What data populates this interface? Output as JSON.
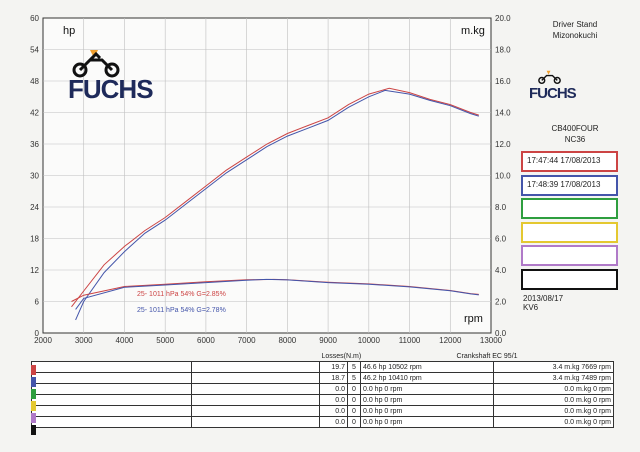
{
  "brand": {
    "logo_text": "FUCHS",
    "logo_text_small": "FUCHS"
  },
  "side_panel": {
    "line1": "Driver Stand",
    "line2": "Mizonokuchi",
    "model": "CB400FOUR",
    "model_code": "NC36",
    "date": "2013/08/17",
    "code": "KV6"
  },
  "runs": [
    {
      "label": "17:47:44  17/08/2013",
      "color": "#cc4444"
    },
    {
      "label": "17:48:39  17/08/2013",
      "color": "#4455aa"
    },
    {
      "label": "",
      "color": "#2e9e3e"
    },
    {
      "label": "",
      "color": "#e4c830"
    },
    {
      "label": "",
      "color": "#b07ac8"
    },
    {
      "label": "",
      "color": "#111111"
    }
  ],
  "chart_data": {
    "type": "line",
    "xlabel": "rpm",
    "ylabel_left": "hp",
    "ylabel_right": "m.kg",
    "xlim": [
      2000,
      13000
    ],
    "ylim_left": [
      0,
      60
    ],
    "ylim_right": [
      0,
      20
    ],
    "xticks": [
      2000,
      3000,
      4000,
      5000,
      6000,
      7000,
      8000,
      9000,
      10000,
      11000,
      12000,
      13000
    ],
    "yticks_left": [
      0,
      6,
      12,
      18,
      24,
      30,
      36,
      42,
      48,
      54,
      60
    ],
    "yticks_right": [
      "0.0",
      "2.0",
      "4.0",
      "6.0",
      "8.0",
      "10.0",
      "12.0",
      "14.0",
      "16.0",
      "18.0",
      "20.0"
    ],
    "grid": true,
    "series": [
      {
        "color": "#cc4444",
        "axis": "left",
        "x": [
          2700,
          3000,
          3500,
          4000,
          4500,
          5000,
          5500,
          6000,
          6500,
          7000,
          7500,
          8000,
          8500,
          9000,
          9500,
          10000,
          10500,
          11000,
          11500,
          12000,
          12500,
          12700
        ],
        "y": [
          5,
          8,
          13,
          16.5,
          19.5,
          22,
          25,
          28,
          31,
          33.5,
          36,
          38,
          39.5,
          41,
          43.5,
          45.5,
          46.6,
          45.8,
          44.5,
          43.5,
          42,
          41.5
        ]
      },
      {
        "color": "#4455aa",
        "axis": "left",
        "x": [
          2800,
          3000,
          3500,
          4000,
          4500,
          5000,
          5500,
          6000,
          6500,
          7000,
          7500,
          8000,
          8500,
          9000,
          9500,
          10000,
          10400,
          11000,
          11500,
          12000,
          12500,
          12700
        ],
        "y": [
          2.5,
          6,
          11.5,
          15.5,
          19,
          21.5,
          24.5,
          27.5,
          30.5,
          33,
          35.5,
          37.5,
          39,
          40.5,
          43,
          45,
          46.2,
          45.5,
          44.3,
          43.3,
          41.8,
          41.3
        ]
      },
      {
        "color": "#cc4444",
        "axis": "right",
        "x": [
          2700,
          3000,
          4000,
          5000,
          6000,
          7000,
          7669,
          8000,
          9000,
          10000,
          11000,
          12000,
          12500,
          12700
        ],
        "y": [
          2.0,
          2.4,
          2.95,
          3.1,
          3.25,
          3.38,
          3.4,
          3.38,
          3.22,
          3.12,
          2.95,
          2.7,
          2.5,
          2.45
        ]
      },
      {
        "color": "#4455aa",
        "axis": "right",
        "x": [
          2800,
          3000,
          4000,
          5000,
          6000,
          7000,
          7489,
          8000,
          9000,
          10000,
          11000,
          12000,
          12500,
          12700
        ],
        "y": [
          1.5,
          2.2,
          2.9,
          3.05,
          3.2,
          3.35,
          3.4,
          3.37,
          3.2,
          3.1,
          2.93,
          2.68,
          2.48,
          2.42
        ]
      }
    ],
    "annotations": [
      {
        "text": "25-   1011 hPa  54%    G=2.85%",
        "color": "#cc4444"
      },
      {
        "text": "25-   1011 hPa  54%    G=2.78%",
        "color": "#4455aa"
      }
    ]
  },
  "losses_table": {
    "header_losses": "Losses(N.m)",
    "header_crank": "Crankshaft EC 95/1",
    "rows": [
      {
        "c1": "",
        "c2": "",
        "a": "19.7",
        "b": "5",
        "hp": "46.6 hp 10502 rpm",
        "mkg": "3.4 m.kg 7669 rpm",
        "color": "#cc4444"
      },
      {
        "c1": "",
        "c2": "",
        "a": "18.7",
        "b": "5",
        "hp": "46.2 hp 10410 rpm",
        "mkg": "3.4 m.kg 7489 rpm",
        "color": "#4455aa"
      },
      {
        "c1": "",
        "c2": "",
        "a": "0.0",
        "b": "0",
        "hp": "0.0 hp 0 rpm",
        "mkg": "0.0 m.kg 0 rpm",
        "color": "#2e9e3e"
      },
      {
        "c1": "",
        "c2": "",
        "a": "0.0",
        "b": "0",
        "hp": "0.0 hp 0 rpm",
        "mkg": "0.0 m.kg 0 rpm",
        "color": "#e4c830"
      },
      {
        "c1": "",
        "c2": "",
        "a": "0.0",
        "b": "0",
        "hp": "0.0 hp 0 rpm",
        "mkg": "0.0 m.kg 0 rpm",
        "color": "#b07ac8"
      },
      {
        "c1": "",
        "c2": "",
        "a": "0.0",
        "b": "0",
        "hp": "0.0 hp 0 rpm",
        "mkg": "0.0 m.kg 0 rpm",
        "color": "#111111"
      }
    ]
  }
}
